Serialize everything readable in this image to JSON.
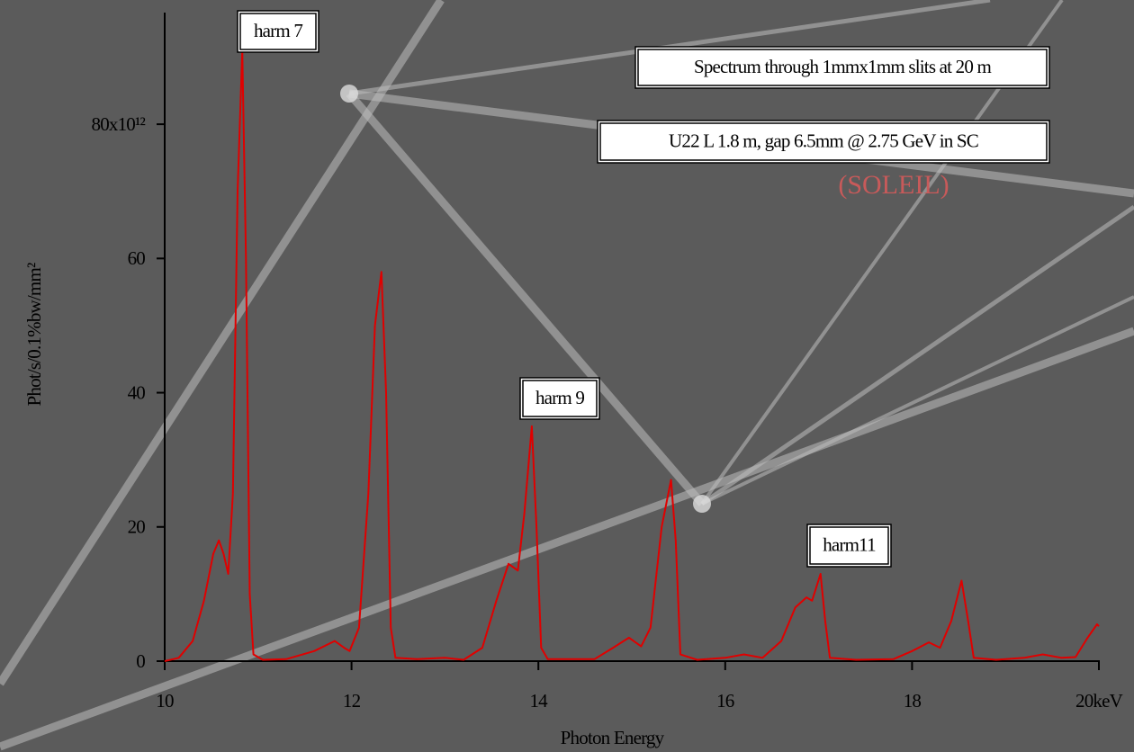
{
  "chart_data": {
    "type": "line",
    "x_label": "Photon Energy",
    "y_label": "Phot/s/0.1%bw/mm²",
    "xlim": [
      10,
      20
    ],
    "ylim": [
      0,
      96.5
    ],
    "xticks": [
      10,
      12,
      14,
      16,
      18,
      {
        "value": 20,
        "label": "20keV"
      }
    ],
    "yticks": [
      0,
      20,
      40,
      60,
      {
        "value": 80,
        "label": "80x10¹²"
      }
    ],
    "annotations": [
      "harm 7",
      "harm 9",
      "harm11",
      "Spectrum through 1mmx1mm slits at 20 m",
      "U22 L 1.8 m, gap 6.5mm @ 2.75 GeV in SC",
      "(SOLEIL)"
    ],
    "series": [
      {
        "color": "#e00000",
        "x": [
          10.0,
          10.15,
          10.3,
          10.42,
          10.52,
          10.58,
          10.63,
          10.68,
          10.73,
          10.78,
          10.83,
          10.87,
          10.91,
          10.95,
          11.05,
          11.3,
          11.6,
          11.82,
          11.92,
          11.98,
          12.08,
          12.18,
          12.25,
          12.32,
          12.37,
          12.42,
          12.47,
          12.7,
          13.0,
          13.2,
          13.4,
          13.55,
          13.68,
          13.78,
          13.85,
          13.93,
          13.98,
          14.03,
          14.1,
          14.6,
          14.8,
          14.97,
          15.1,
          15.2,
          15.32,
          15.42,
          15.47,
          15.52,
          15.7,
          16.0,
          16.2,
          16.4,
          16.6,
          16.75,
          16.87,
          16.93,
          17.02,
          17.07,
          17.12,
          17.4,
          17.8,
          18.0,
          18.18,
          18.3,
          18.42,
          18.53,
          18.6,
          18.66,
          18.9,
          19.2,
          19.4,
          19.6,
          19.75,
          19.88,
          19.98,
          20.0
        ],
        "values": [
          0,
          0.5,
          3,
          9,
          16,
          18,
          16,
          13,
          25,
          70,
          91,
          60,
          10,
          1,
          0.2,
          0.3,
          1.5,
          3,
          2,
          1.5,
          5,
          25,
          50,
          58,
          40,
          5,
          0.5,
          0.3,
          0.5,
          0.2,
          2,
          9,
          14.5,
          13.5,
          22,
          35,
          20,
          2,
          0.3,
          0.3,
          2,
          3.5,
          2.2,
          5,
          20,
          27,
          18,
          1,
          0.2,
          0.5,
          1,
          0.5,
          3,
          8,
          9.5,
          9,
          13,
          6,
          0.5,
          0.2,
          0.3,
          1.5,
          2.8,
          2,
          6,
          12,
          6,
          0.5,
          0.2,
          0.5,
          1,
          0.5,
          0.6,
          3.5,
          5.5,
          5.2
        ]
      }
    ]
  }
}
